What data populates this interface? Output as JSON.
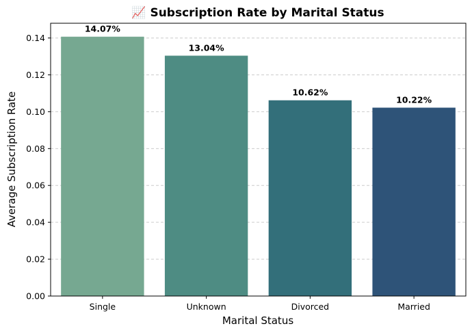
{
  "chart_data": {
    "type": "bar",
    "title": "📈 Subscription Rate by Marital Status",
    "xlabel": "Marital Status",
    "ylabel": "Average Subscription Rate",
    "categories": [
      "Single",
      "Unknown",
      "Divorced",
      "Married"
    ],
    "values": [
      0.1407,
      0.1304,
      0.1062,
      0.1022
    ],
    "data_labels": [
      "14.07%",
      "13.04%",
      "10.62%",
      "10.22%"
    ],
    "ylim": [
      0,
      0.148
    ],
    "yticks": [
      0.0,
      0.02,
      0.04,
      0.06,
      0.08,
      0.1,
      0.12,
      0.14
    ],
    "ytick_labels": [
      "0.00",
      "0.02",
      "0.04",
      "0.06",
      "0.08",
      "0.10",
      "0.12",
      "0.14"
    ],
    "colors": [
      "#76a891",
      "#4e8c83",
      "#336f7a",
      "#2e5378"
    ],
    "grid": "y-dashed",
    "grid_color": "#cccccc"
  }
}
